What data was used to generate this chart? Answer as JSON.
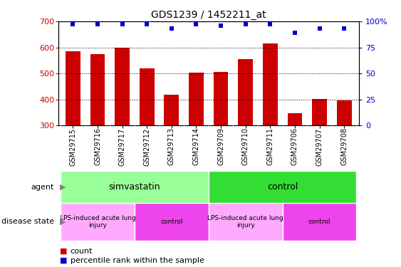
{
  "title": "GDS1239 / 1452211_at",
  "samples": [
    "GSM29715",
    "GSM29716",
    "GSM29717",
    "GSM29712",
    "GSM29713",
    "GSM29714",
    "GSM29709",
    "GSM29710",
    "GSM29711",
    "GSM29706",
    "GSM29707",
    "GSM29708"
  ],
  "counts": [
    585,
    573,
    598,
    520,
    418,
    503,
    507,
    555,
    615,
    347,
    402,
    397
  ],
  "percentiles": [
    97,
    97,
    97,
    97,
    93,
    97,
    96,
    97,
    97,
    89,
    93,
    93
  ],
  "bar_color": "#cc0000",
  "dot_color": "#0000cc",
  "ylim_left": [
    300,
    700
  ],
  "ylim_right": [
    0,
    100
  ],
  "yticks_left": [
    300,
    400,
    500,
    600,
    700
  ],
  "yticks_right": [
    0,
    25,
    50,
    75,
    100
  ],
  "agent_groups": [
    {
      "label": "simvastatin",
      "start": 0,
      "end": 6,
      "color": "#99ff99"
    },
    {
      "label": "control",
      "start": 6,
      "end": 12,
      "color": "#33dd33"
    }
  ],
  "disease_groups": [
    {
      "label": "LPS-induced acute lung\ninjury",
      "start": 0,
      "end": 3,
      "color": "#ffaaff"
    },
    {
      "label": "control",
      "start": 3,
      "end": 6,
      "color": "#ee44ee"
    },
    {
      "label": "LPS-induced acute lung\ninjury",
      "start": 6,
      "end": 9,
      "color": "#ffaaff"
    },
    {
      "label": "control",
      "start": 9,
      "end": 12,
      "color": "#ee44ee"
    }
  ],
  "legend_count_label": "count",
  "legend_pct_label": "percentile rank within the sample",
  "agent_label": "agent",
  "disease_label": "disease state",
  "xtick_bg": "#cccccc",
  "tick_label_color_left": "#cc0000",
  "tick_label_color_right": "#0000cc"
}
